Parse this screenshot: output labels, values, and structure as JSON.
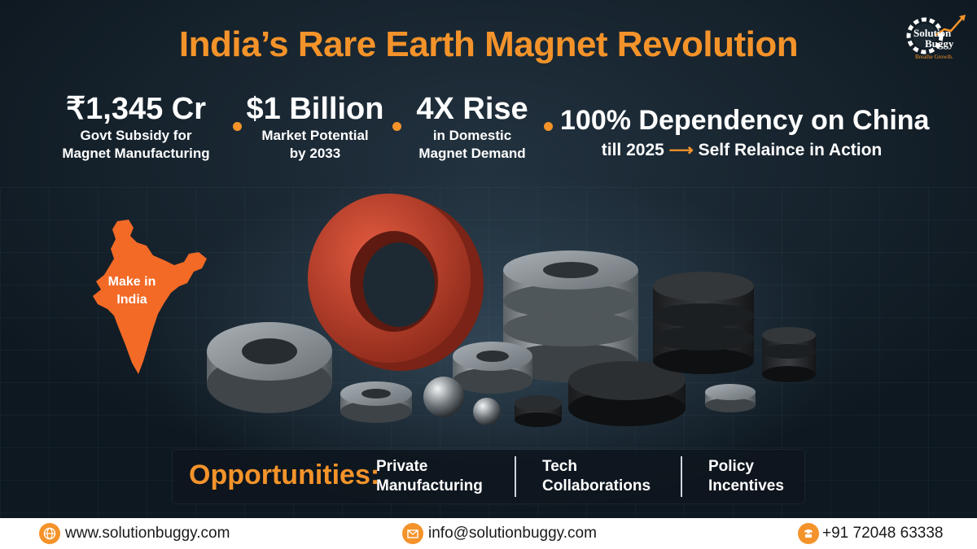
{
  "title": "India’s Rare Earth Magnet Revolution",
  "logo": {
    "name_line1": "Solution",
    "name_line2": "Buggy",
    "tagline": "Breathe Growth."
  },
  "stats": [
    {
      "big": "₹1,345 Cr",
      "line1": "Govt Subsidy for",
      "line2": "Magnet Manufacturing"
    },
    {
      "big": "$1 Billion",
      "line1": "Market Potential",
      "line2": "by 2033"
    },
    {
      "big": "4X Rise",
      "line1": "in Domestic",
      "line2": "Magnet Demand"
    },
    {
      "big": "100% Dependency on China",
      "line1_pre": "till 2025",
      "line1_arrow": "⟶",
      "line1_post": "Self Relaince in Action"
    }
  ],
  "map_label": {
    "line1": "Make in",
    "line2": "India"
  },
  "opportunities": {
    "title": "Opportunities:",
    "items": [
      {
        "line1": "Private",
        "line2": "Manufacturing"
      },
      {
        "line1": "Tech",
        "line2": "Collaborations"
      },
      {
        "line1": "Policy",
        "line2": "Incentives"
      }
    ]
  },
  "footer": {
    "website": "www.solutionbuggy.com",
    "email": "info@solutionbuggy.com",
    "phone": "+91 72048 63338"
  },
  "colors": {
    "accent": "#f4932a",
    "background": "#0f1a23",
    "footer_bg": "#ffffff",
    "magnet_red": "#c8412c"
  },
  "icons": [
    "gear-logo-icon",
    "globe-icon",
    "mail-icon",
    "phone-icon"
  ]
}
